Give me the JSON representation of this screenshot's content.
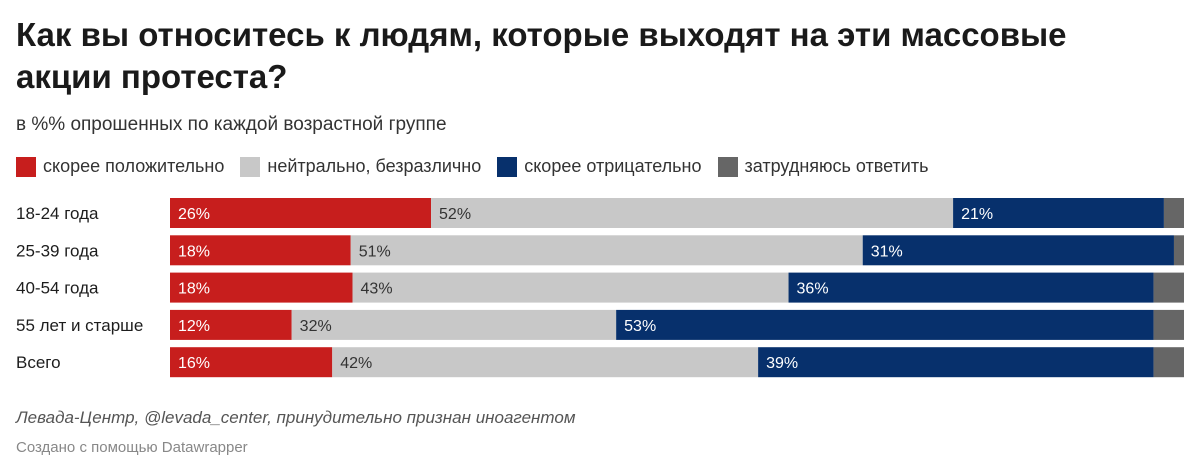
{
  "title": "Как вы относитесь к людям, которые выходят на эти массовые акции протеста?",
  "subtitle": "в %% опрошенных по каждой возрастной группе",
  "source": "Левада-Центр, @levada_center, принудительно признан иноагентом",
  "credit": "Создано с помощью Datawrapper",
  "chart_data": {
    "type": "bar",
    "stacked": true,
    "orientation": "horizontal",
    "title": "Как вы относитесь к людям, которые выходят на эти массовые акции протеста?",
    "xlim": [
      0,
      100
    ],
    "categories": [
      "18-24 года",
      "25-39 года",
      "40-54 года",
      "55 лет и старше",
      "Всего"
    ],
    "series": [
      {
        "key": "pos",
        "name": "скорее положительно",
        "color": "#c71e1d",
        "label_color": "#ffffff",
        "values": [
          26,
          18,
          18,
          12,
          16
        ],
        "labels": [
          "26%",
          "18%",
          "18%",
          "12%",
          "16%"
        ]
      },
      {
        "key": "neu",
        "name": "нейтрально, безразлично",
        "color": "#c8c8c8",
        "label_color": "#333333",
        "values": [
          52,
          51,
          43,
          32,
          42
        ],
        "labels": [
          "52%",
          "51%",
          "43%",
          "32%",
          "42%"
        ]
      },
      {
        "key": "neg",
        "name": "скорее отрицательно",
        "color": "#07306c",
        "label_color": "#ffffff",
        "values": [
          21,
          31,
          36,
          53,
          39
        ],
        "labels": [
          "21%",
          "31%",
          "36%",
          "53%",
          "39%"
        ]
      },
      {
        "key": "dk",
        "name": "затрудняюсь ответить",
        "color": "#666666",
        "label_color": "#ffffff",
        "values": [
          2,
          1,
          3,
          3,
          3
        ],
        "labels": [
          "",
          "",
          "",
          "",
          ""
        ]
      }
    ]
  }
}
